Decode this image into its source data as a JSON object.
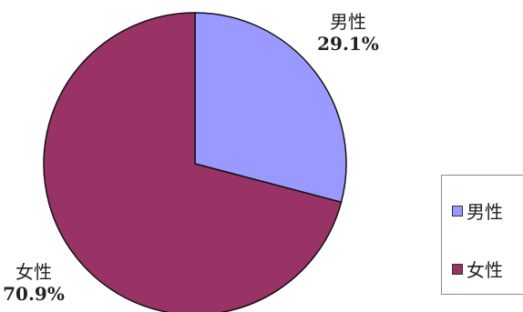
{
  "chart_data": {
    "type": "pie",
    "slices": [
      {
        "label": "男性",
        "value": 29.1,
        "value_text": "29.1%",
        "color": "#9999ff"
      },
      {
        "label": "女性",
        "value": 70.9,
        "value_text": "70.9%",
        "color": "#993366"
      }
    ],
    "legend": {
      "placement": "right",
      "entries": [
        "男性",
        "女性"
      ]
    },
    "title": "",
    "start_angle": "12 o'clock",
    "direction": "clockwise"
  }
}
